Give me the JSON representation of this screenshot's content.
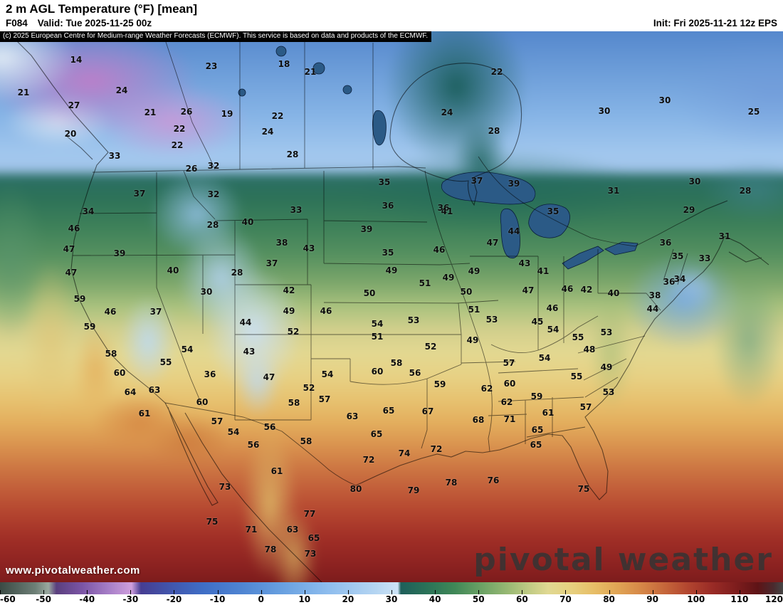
{
  "header": {
    "title": "2 m AGL Temperature (°F) [mean]",
    "frame": "F084",
    "valid": "Valid: Tue 2025-11-25 00z",
    "init": "Init: Fri 2025-11-21 12z EPS"
  },
  "map": {
    "copyright": "(c) 2025 European Centre for Medium-range Weather Forecasts (ECMWF). This service is based on data and products of the ECMWF.",
    "watermark": "www.pivotalweather.com",
    "logo": "pivotal weather",
    "temps": [
      [
        14,
        107,
        84
      ],
      [
        23,
        297,
        93
      ],
      [
        18,
        399,
        90
      ],
      [
        21,
        436,
        101
      ],
      [
        22,
        698,
        101
      ],
      [
        21,
        33,
        130
      ],
      [
        24,
        171,
        127
      ],
      [
        27,
        104,
        148
      ],
      [
        21,
        211,
        158
      ],
      [
        26,
        262,
        157
      ],
      [
        19,
        319,
        160
      ],
      [
        22,
        390,
        163
      ],
      [
        24,
        628,
        158
      ],
      [
        30,
        849,
        156
      ],
      [
        30,
        934,
        141
      ],
      [
        25,
        1059,
        157
      ],
      [
        20,
        99,
        188
      ],
      [
        22,
        252,
        181
      ],
      [
        24,
        376,
        185
      ],
      [
        28,
        694,
        184
      ],
      [
        22,
        249,
        204
      ],
      [
        33,
        161,
        219
      ],
      [
        28,
        411,
        217
      ],
      [
        26,
        269,
        237
      ],
      [
        32,
        300,
        233
      ],
      [
        35,
        540,
        256
      ],
      [
        37,
        670,
        254
      ],
      [
        39,
        722,
        258
      ],
      [
        31,
        862,
        268
      ],
      [
        30,
        976,
        255
      ],
      [
        28,
        1047,
        268
      ],
      [
        37,
        196,
        272
      ],
      [
        32,
        300,
        273
      ],
      [
        36,
        545,
        289
      ],
      [
        36,
        623,
        292
      ],
      [
        34,
        124,
        297
      ],
      [
        33,
        416,
        295
      ],
      [
        41,
        628,
        297
      ],
      [
        35,
        777,
        297
      ],
      [
        29,
        968,
        295
      ],
      [
        46,
        104,
        321
      ],
      [
        28,
        299,
        316
      ],
      [
        40,
        348,
        312
      ],
      [
        39,
        515,
        322
      ],
      [
        44,
        722,
        325
      ],
      [
        31,
        1018,
        332
      ],
      [
        47,
        97,
        350
      ],
      [
        39,
        168,
        356
      ],
      [
        38,
        396,
        341
      ],
      [
        43,
        434,
        349
      ],
      [
        35,
        545,
        355
      ],
      [
        46,
        617,
        351
      ],
      [
        47,
        692,
        341
      ],
      [
        43,
        737,
        370
      ],
      [
        36,
        935,
        341
      ],
      [
        35,
        952,
        360
      ],
      [
        33,
        990,
        363
      ],
      [
        47,
        100,
        383
      ],
      [
        40,
        243,
        380
      ],
      [
        37,
        382,
        370
      ],
      [
        28,
        333,
        383
      ],
      [
        49,
        550,
        380
      ],
      [
        51,
        597,
        398
      ],
      [
        49,
        630,
        390
      ],
      [
        49,
        666,
        381
      ],
      [
        41,
        763,
        381
      ],
      [
        46,
        797,
        406
      ],
      [
        42,
        824,
        407
      ],
      [
        40,
        862,
        412
      ],
      [
        36,
        940,
        396
      ],
      [
        34,
        955,
        392
      ],
      [
        38,
        920,
        415
      ],
      [
        59,
        112,
        420
      ],
      [
        30,
        290,
        410
      ],
      [
        42,
        406,
        408
      ],
      [
        50,
        519,
        412
      ],
      [
        50,
        655,
        410
      ],
      [
        47,
        742,
        408
      ],
      [
        59,
        126,
        459
      ],
      [
        46,
        155,
        438
      ],
      [
        37,
        219,
        438
      ],
      [
        44,
        345,
        453
      ],
      [
        49,
        406,
        437
      ],
      [
        46,
        458,
        437
      ],
      [
        51,
        666,
        435
      ],
      [
        46,
        776,
        433
      ],
      [
        44,
        917,
        434
      ],
      [
        54,
        530,
        455
      ],
      [
        53,
        581,
        450
      ],
      [
        53,
        691,
        449
      ],
      [
        45,
        755,
        452
      ],
      [
        54,
        777,
        463
      ],
      [
        53,
        852,
        467
      ],
      [
        52,
        412,
        466
      ],
      [
        51,
        530,
        473
      ],
      [
        52,
        605,
        487
      ],
      [
        49,
        664,
        478
      ],
      [
        55,
        812,
        474
      ],
      [
        48,
        828,
        491
      ],
      [
        49,
        852,
        516
      ],
      [
        58,
        156,
        497
      ],
      [
        54,
        263,
        491
      ],
      [
        43,
        350,
        494
      ],
      [
        58,
        557,
        510
      ],
      [
        57,
        715,
        510
      ],
      [
        54,
        765,
        503
      ],
      [
        55,
        810,
        529
      ],
      [
        53,
        855,
        551
      ],
      [
        60,
        168,
        524
      ],
      [
        55,
        233,
        509
      ],
      [
        36,
        295,
        526
      ],
      [
        47,
        378,
        530
      ],
      [
        54,
        460,
        526
      ],
      [
        60,
        530,
        522
      ],
      [
        56,
        583,
        524
      ],
      [
        64,
        183,
        551
      ],
      [
        63,
        217,
        548
      ],
      [
        52,
        434,
        545
      ],
      [
        59,
        618,
        540
      ],
      [
        62,
        684,
        546
      ],
      [
        60,
        716,
        539
      ],
      [
        59,
        754,
        557
      ],
      [
        61,
        203,
        581
      ],
      [
        60,
        284,
        565
      ],
      [
        58,
        413,
        566
      ],
      [
        57,
        456,
        561
      ],
      [
        65,
        546,
        577
      ],
      [
        63,
        495,
        585
      ],
      [
        67,
        601,
        578
      ],
      [
        62,
        712,
        565
      ],
      [
        61,
        770,
        580
      ],
      [
        57,
        823,
        572
      ],
      [
        57,
        305,
        592
      ],
      [
        54,
        328,
        607
      ],
      [
        56,
        379,
        600
      ],
      [
        58,
        430,
        620
      ],
      [
        65,
        529,
        610
      ],
      [
        68,
        672,
        590
      ],
      [
        71,
        716,
        589
      ],
      [
        65,
        755,
        604
      ],
      [
        65,
        753,
        625
      ],
      [
        72,
        613,
        631
      ],
      [
        74,
        568,
        637
      ],
      [
        72,
        518,
        646
      ],
      [
        56,
        356,
        625
      ],
      [
        61,
        389,
        662
      ],
      [
        73,
        316,
        684
      ],
      [
        80,
        500,
        687
      ],
      [
        79,
        581,
        689
      ],
      [
        78,
        634,
        678
      ],
      [
        76,
        693,
        675
      ],
      [
        75,
        820,
        687
      ],
      [
        77,
        435,
        722
      ],
      [
        75,
        298,
        733
      ],
      [
        71,
        353,
        744
      ],
      [
        63,
        411,
        744
      ],
      [
        65,
        441,
        756
      ],
      [
        78,
        380,
        772
      ],
      [
        73,
        436,
        778
      ]
    ]
  },
  "colorbar": {
    "min": -60,
    "max": 120,
    "ticks": [
      -60,
      -50,
      -40,
      -30,
      -20,
      -10,
      0,
      10,
      20,
      30,
      40,
      50,
      60,
      70,
      80,
      90,
      100,
      110,
      120
    ],
    "stops": [
      {
        "p": 0.0,
        "c": "#3a4a44"
      },
      {
        "p": 0.045,
        "c": "#6d7f76"
      },
      {
        "p": 0.062,
        "c": "#9aa89f"
      },
      {
        "p": 0.072,
        "c": "#5a3f7e"
      },
      {
        "p": 0.105,
        "c": "#7b55a5"
      },
      {
        "p": 0.14,
        "c": "#a87fc8"
      },
      {
        "p": 0.168,
        "c": "#cf9fdd"
      },
      {
        "p": 0.18,
        "c": "#463d92"
      },
      {
        "p": 0.22,
        "c": "#4157ae"
      },
      {
        "p": 0.26,
        "c": "#3f6ec6"
      },
      {
        "p": 0.31,
        "c": "#4f85d2"
      },
      {
        "p": 0.36,
        "c": "#68a0e0"
      },
      {
        "p": 0.42,
        "c": "#8ebdee"
      },
      {
        "p": 0.48,
        "c": "#b5d5f2"
      },
      {
        "p": 0.508,
        "c": "#cde3f7"
      },
      {
        "p": 0.512,
        "c": "#1e5f5a"
      },
      {
        "p": 0.545,
        "c": "#2a7258"
      },
      {
        "p": 0.58,
        "c": "#3f8757"
      },
      {
        "p": 0.615,
        "c": "#6ba265"
      },
      {
        "p": 0.648,
        "c": "#97b873"
      },
      {
        "p": 0.678,
        "c": "#c3cc85"
      },
      {
        "p": 0.7,
        "c": "#e0d892"
      },
      {
        "p": 0.73,
        "c": "#e7d07f"
      },
      {
        "p": 0.76,
        "c": "#e7bd66"
      },
      {
        "p": 0.79,
        "c": "#e0a354"
      },
      {
        "p": 0.82,
        "c": "#d58647"
      },
      {
        "p": 0.85,
        "c": "#c5653a"
      },
      {
        "p": 0.88,
        "c": "#b1442f"
      },
      {
        "p": 0.91,
        "c": "#992b26"
      },
      {
        "p": 0.94,
        "c": "#7e1d1d"
      },
      {
        "p": 0.968,
        "c": "#5e1316"
      },
      {
        "p": 0.988,
        "c": "#4a2a2e"
      },
      {
        "p": 1.0,
        "c": "#454545"
      }
    ]
  }
}
